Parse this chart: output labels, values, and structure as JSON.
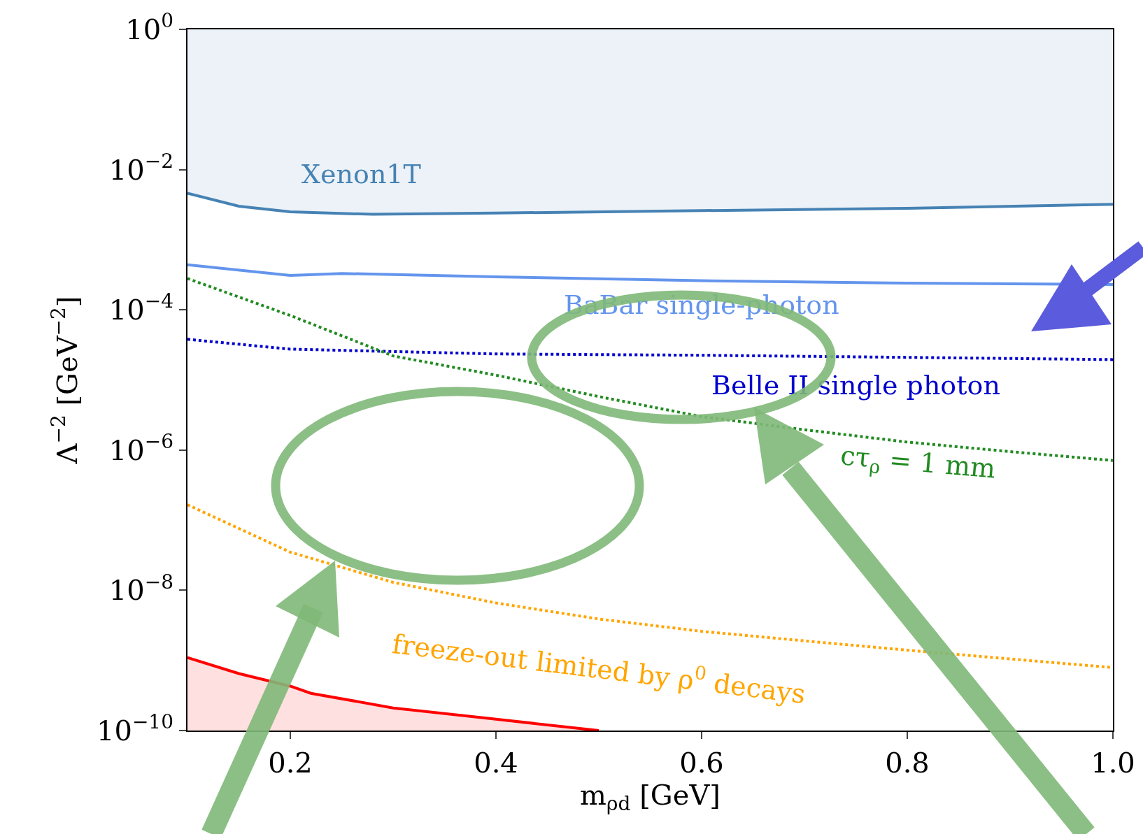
{
  "chart_data": {
    "type": "line",
    "xlabel": "m$_{ρd}$ [GeV]",
    "ylabel": "Λ$^{−2}$ [GeV$^{−2}$]",
    "log": "y",
    "grid": false,
    "legend": false,
    "xlim": [
      0.1,
      1.0
    ],
    "xticks": [
      {
        "value": 0.2,
        "label": "0.2"
      },
      {
        "value": 0.4,
        "label": "0.4"
      },
      {
        "value": 0.6,
        "label": "0.6"
      },
      {
        "value": 0.8,
        "label": "0.8"
      },
      {
        "value": 1.0,
        "label": "1.0"
      }
    ],
    "ylim": [
      1e-10,
      1
    ],
    "yticks": [
      {
        "value": 1e-10,
        "label": "10$^{−10}$"
      },
      {
        "value": 1e-08,
        "label": "10$^{−8}$"
      },
      {
        "value": 1e-06,
        "label": "10$^{−6}$"
      },
      {
        "value": 0.0001,
        "label": "10$^{−4}$"
      },
      {
        "value": 0.01,
        "label": "10$^{−2}$"
      },
      {
        "value": 1,
        "label": "10$^{0}$"
      }
    ],
    "series": [
      {
        "name": "Xenon1T",
        "color": "#4682b4",
        "line_style": "solid",
        "x": [
          0.1,
          0.15,
          0.2,
          0.28,
          0.4,
          0.6,
          0.8,
          1.0
        ],
        "values": [
          0.0046,
          0.003,
          0.0025,
          0.0023,
          0.0024,
          0.0026,
          0.0028,
          0.0032
        ],
        "lower": [
          0.0046,
          0.003,
          0.0025,
          0.0023,
          0.0024,
          0.0026,
          0.0028,
          0.0032
        ],
        "upper": [
          1,
          1,
          1,
          1,
          1,
          1,
          1,
          1
        ]
      },
      {
        "name": "BaBar single-photon",
        "color": "#6495ed",
        "line_style": "solid",
        "x": [
          0.1,
          0.2,
          0.25,
          0.4,
          0.6,
          0.8,
          1.0
        ],
        "values": [
          0.00044,
          0.00031,
          0.00033,
          0.000295,
          0.00026,
          0.00024,
          0.00023
        ]
      },
      {
        "name": "Belle II single photon",
        "color": "#0000cd",
        "line_style": "dotted",
        "x": [
          0.1,
          0.2,
          0.4,
          0.6,
          0.8,
          1.0
        ],
        "values": [
          3.8e-05,
          2.75e-05,
          2.35e-05,
          2.25e-05,
          2.1e-05,
          1.95e-05
        ]
      },
      {
        "name": "cτ$_{ρ}$ = 1 mm",
        "color": "#228b22",
        "line_style": "dotted",
        "x": [
          0.1,
          0.2,
          0.3,
          0.4,
          0.5,
          0.6,
          0.7,
          0.8,
          0.9,
          1.0
        ],
        "values": [
          0.00028,
          8.3e-05,
          2.2e-05,
          1.17e-05,
          5.8e-06,
          3e-06,
          1.95e-06,
          1.3e-06,
          9.5e-07,
          7.1e-07
        ]
      },
      {
        "name": "freeze-out limited by ρ$^{0}$ decays",
        "color": "#ffa500",
        "line_style": "dotted",
        "x": [
          0.1,
          0.2,
          0.3,
          0.4,
          0.5,
          0.6,
          0.7,
          0.8,
          0.9,
          1.0
        ],
        "values": [
          1.66e-07,
          3.5e-08,
          1.3e-08,
          6.6e-09,
          3.9e-09,
          2.6e-09,
          1.9e-09,
          1.4e-09,
          1.05e-09,
          7.9e-10
        ]
      },
      {
        "type": "area",
        "color": "#ff0000",
        "line_style": "solid",
        "x": [
          0.1,
          0.15,
          0.2,
          0.22,
          0.3,
          0.4,
          0.5
        ],
        "values": [
          1.1e-09,
          6.5e-10,
          4.3e-10,
          3.4e-10,
          2.1e-10,
          1.45e-10,
          1e-10
        ]
      }
    ]
  }
}
